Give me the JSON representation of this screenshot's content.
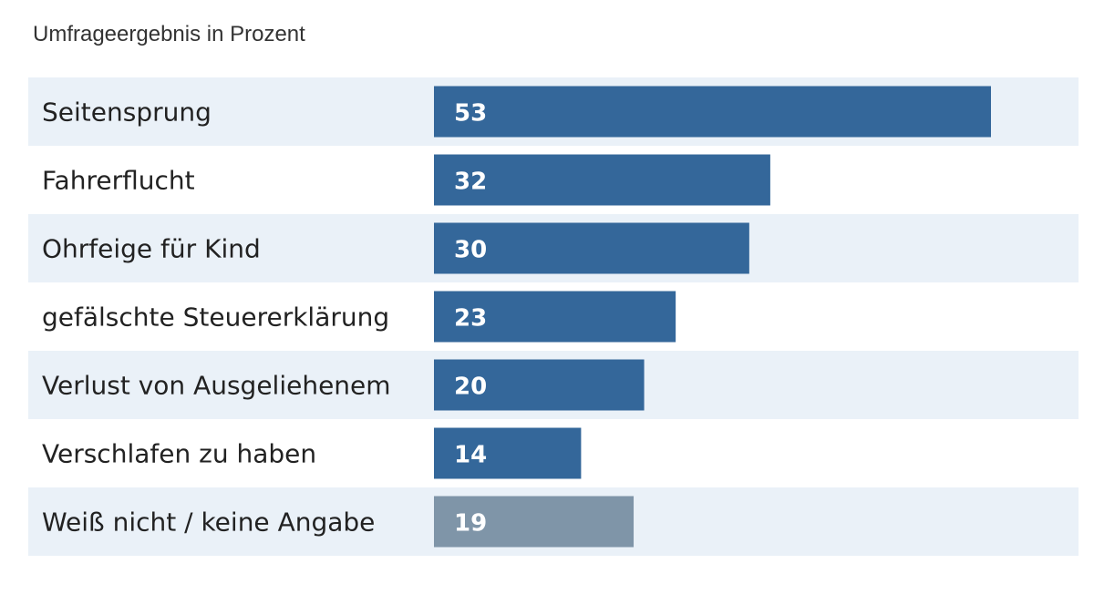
{
  "subtitle": "Umfrageergebnis in Prozent",
  "colors": {
    "bar": "#34679a",
    "bar_other": "#7f95a8",
    "band": "#eaf1f8",
    "title": "#9b1b1e"
  },
  "chart_data": {
    "type": "bar",
    "orientation": "horizontal",
    "subtitle": "Umfrageergebnis in Prozent",
    "categories": [
      "Seitensprung",
      "Fahrerflucht",
      "Ohrfeige für Kind",
      "gefälschte Steuererklärung",
      "Verlust von Ausgeliehenem",
      "Verschlafen zu haben",
      "Weiß nicht / keine Angabe"
    ],
    "values": [
      53,
      32,
      30,
      23,
      20,
      14,
      19
    ],
    "data_labels": true,
    "grid": false
  }
}
